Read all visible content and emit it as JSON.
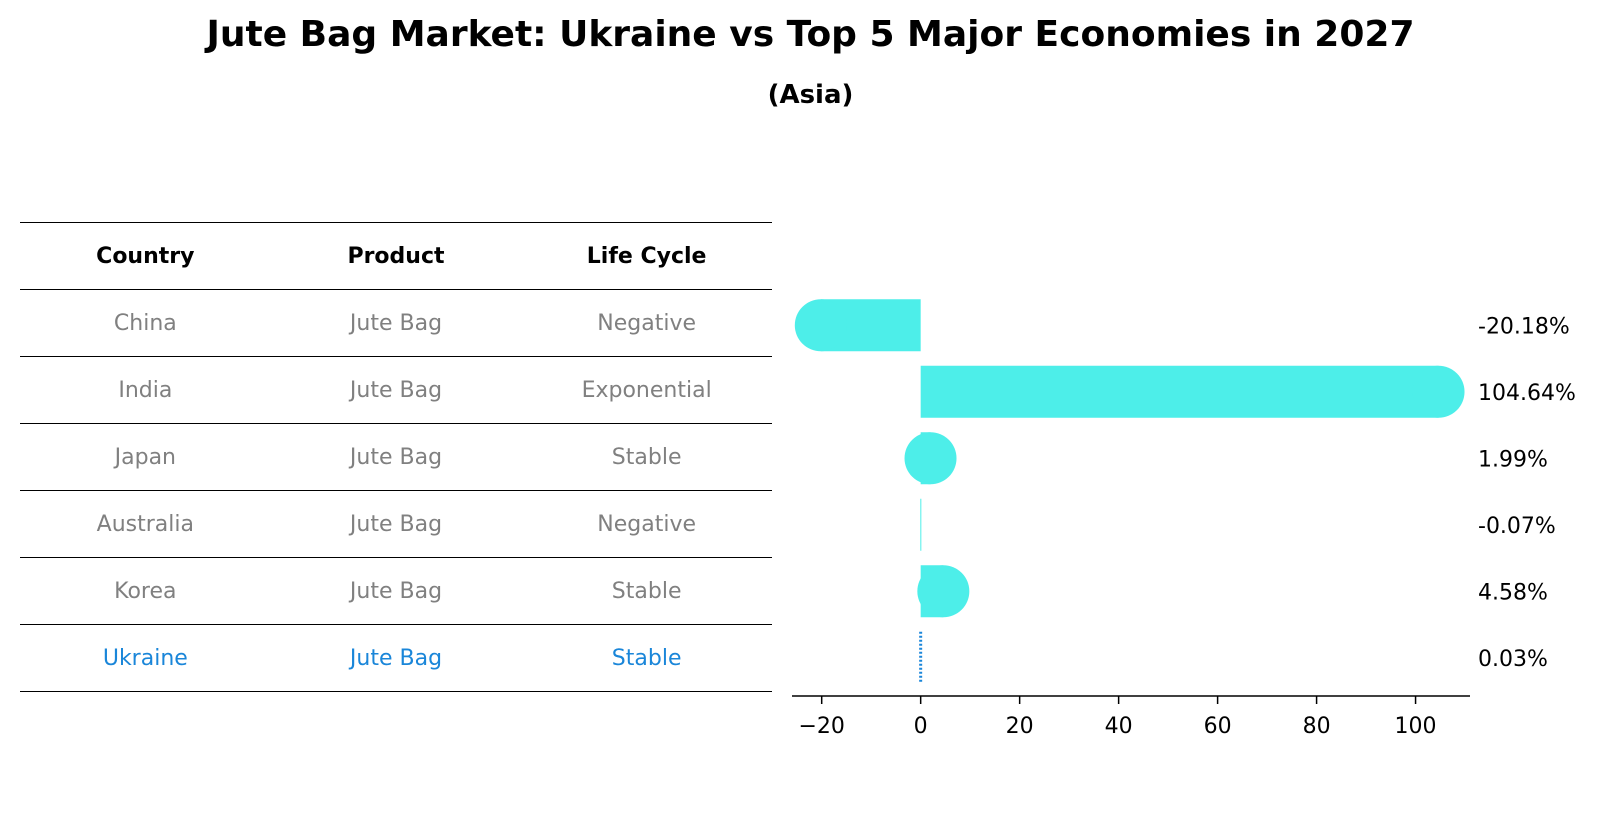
{
  "title": "Jute Bag Market: Ukraine vs Top 5 Major Economies in 2027",
  "subtitle": "(Asia)",
  "table": {
    "headers": [
      "Country",
      "Product",
      "Life Cycle"
    ],
    "rows": [
      {
        "country": "China",
        "product": "Jute Bag",
        "life_cycle": "Negative"
      },
      {
        "country": "India",
        "product": "Jute Bag",
        "life_cycle": "Exponential"
      },
      {
        "country": "Japan",
        "product": "Jute Bag",
        "life_cycle": "Stable"
      },
      {
        "country": "Australia",
        "product": "Jute Bag",
        "life_cycle": "Negative"
      },
      {
        "country": "Korea",
        "product": "Jute Bag",
        "life_cycle": "Stable"
      },
      {
        "country": "Ukraine",
        "product": "Jute Bag",
        "life_cycle": "Stable"
      }
    ],
    "highlight_row": 5
  },
  "chart_data": {
    "type": "bar",
    "orientation": "horizontal",
    "categories": [
      "China",
      "India",
      "Japan",
      "Australia",
      "Korea",
      "Ukraine"
    ],
    "values": [
      -20.18,
      104.64,
      1.99,
      -0.07,
      4.58,
      0.03
    ],
    "value_labels": [
      "-20.18%",
      "104.64%",
      "1.99%",
      "-0.07%",
      "4.58%",
      "0.03%"
    ],
    "xlim": [
      -26,
      111
    ],
    "xticks": [
      -20,
      0,
      20,
      40,
      60,
      80,
      100
    ],
    "xtick_labels": [
      "−20",
      "0",
      "20",
      "40",
      "60",
      "80",
      "100"
    ],
    "bar_color": "#4deee9",
    "highlight_color": "#1a86d9",
    "highlight_index": 5,
    "grid": false
  }
}
